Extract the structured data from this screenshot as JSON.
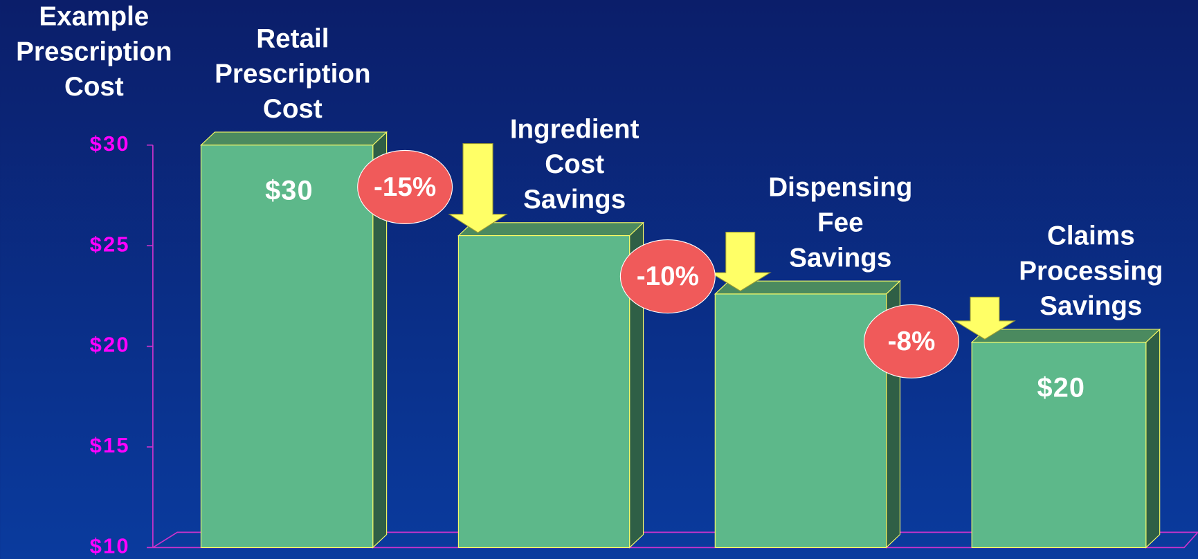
{
  "chart_data": {
    "type": "bar",
    "y_label": "Example Prescription Cost",
    "categories": [
      "Retail Prescription Cost",
      "Ingredient Cost Savings",
      "Dispensing Fee Savings",
      "Claims Processing Savings"
    ],
    "values": [
      30,
      25.5,
      22.6,
      20.2
    ],
    "value_labels": [
      "$30",
      null,
      null,
      "$20"
    ],
    "annotations": [
      "-15%",
      "-10%",
      "-8%"
    ],
    "color": "#5db88a",
    "ylim": [
      10,
      30
    ],
    "yticks": [
      {
        "value": 10,
        "label": "$10"
      },
      {
        "value": 15,
        "label": "$15"
      },
      {
        "value": 20,
        "label": "$20"
      },
      {
        "value": 25,
        "label": "$25"
      },
      {
        "value": 30,
        "label": "$30"
      }
    ]
  }
}
